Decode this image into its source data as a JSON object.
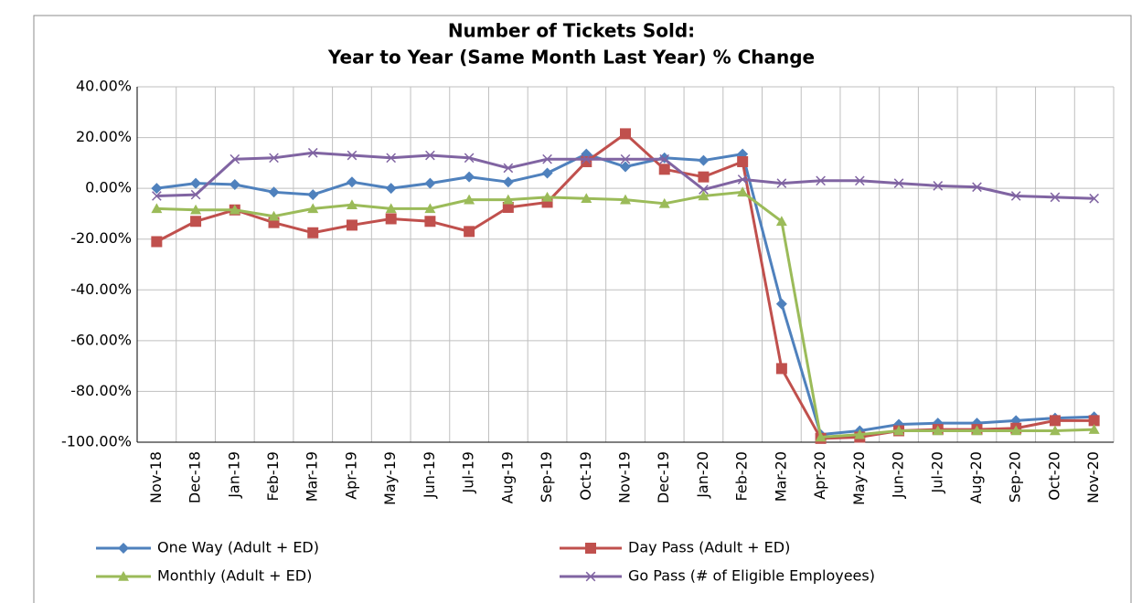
{
  "chart_data": {
    "type": "line",
    "title": "Number of Tickets Sold:",
    "subtitle": "Year to Year (Same Month Last Year) % Change",
    "categories": [
      "Nov-18",
      "Dec-18",
      "Jan-19",
      "Feb-19",
      "Mar-19",
      "Apr-19",
      "May-19",
      "Jun-19",
      "Jul-19",
      "Aug-19",
      "Sep-19",
      "Oct-19",
      "Nov-19",
      "Dec-19",
      "Jan-20",
      "Feb-20",
      "Mar-20",
      "Apr-20",
      "May-20",
      "Jun-20",
      "Jul-20",
      "Aug-20",
      "Sep-20",
      "Oct-20",
      "Nov-20"
    ],
    "series": [
      {
        "name": "One Way (Adult + ED)",
        "color": "#4f81bd",
        "marker": "diamond",
        "values": [
          0,
          2,
          1.5,
          -1.5,
          -2.5,
          2.5,
          0,
          2,
          4.5,
          2.5,
          6,
          13.5,
          8.5,
          12,
          11,
          13.5,
          -45.5,
          -97,
          -95.5,
          -93,
          -92.5,
          -92.5,
          -91.5,
          -90.5,
          -90
        ]
      },
      {
        "name": "Day Pass (Adult + ED)",
        "color": "#c0504d",
        "marker": "square",
        "values": [
          -21,
          -13,
          -8.5,
          -13.5,
          -17.5,
          -14.5,
          -12,
          -13,
          -17,
          -7.5,
          -5.5,
          10.5,
          21.5,
          7.5,
          4.5,
          10.5,
          -71,
          -98.5,
          -98,
          -95.5,
          -95,
          -95,
          -94.5,
          -91.5,
          -91.5
        ]
      },
      {
        "name": "Monthly (Adult + ED)",
        "color": "#9bbb59",
        "marker": "triangle",
        "values": [
          -8,
          -8.5,
          -8.5,
          -11,
          -8,
          -6.5,
          -8,
          -8,
          -4.5,
          -4.5,
          -3.5,
          -4,
          -4.5,
          -6,
          -3,
          -1.5,
          -13,
          -98,
          -97,
          -95.5,
          -95.5,
          -95.5,
          -95.5,
          -95.5,
          -95
        ]
      },
      {
        "name": "Go Pass (# of Eligible Employees)",
        "color": "#8064a2",
        "marker": "x",
        "values": [
          -3,
          -2.5,
          11.5,
          12,
          14,
          13,
          12,
          13,
          12,
          8,
          11.5,
          11.5,
          11.5,
          11.5,
          -0.5,
          3.5,
          2,
          3,
          3,
          2,
          1,
          0.5,
          -3,
          -3.5,
          -4
        ]
      }
    ],
    "ylim": [
      -100,
      40
    ],
    "yticks": [
      {
        "value": -100,
        "label": "-100.00%"
      },
      {
        "value": -80,
        "label": "-80.00%"
      },
      {
        "value": -60,
        "label": "-60.00%"
      },
      {
        "value": -40,
        "label": "-40.00%"
      },
      {
        "value": -20,
        "label": "-20.00%"
      },
      {
        "value": 0,
        "label": "0.00%"
      },
      {
        "value": 20,
        "label": "20.00%"
      },
      {
        "value": 40,
        "label": "40.00%"
      }
    ],
    "grid": true
  }
}
